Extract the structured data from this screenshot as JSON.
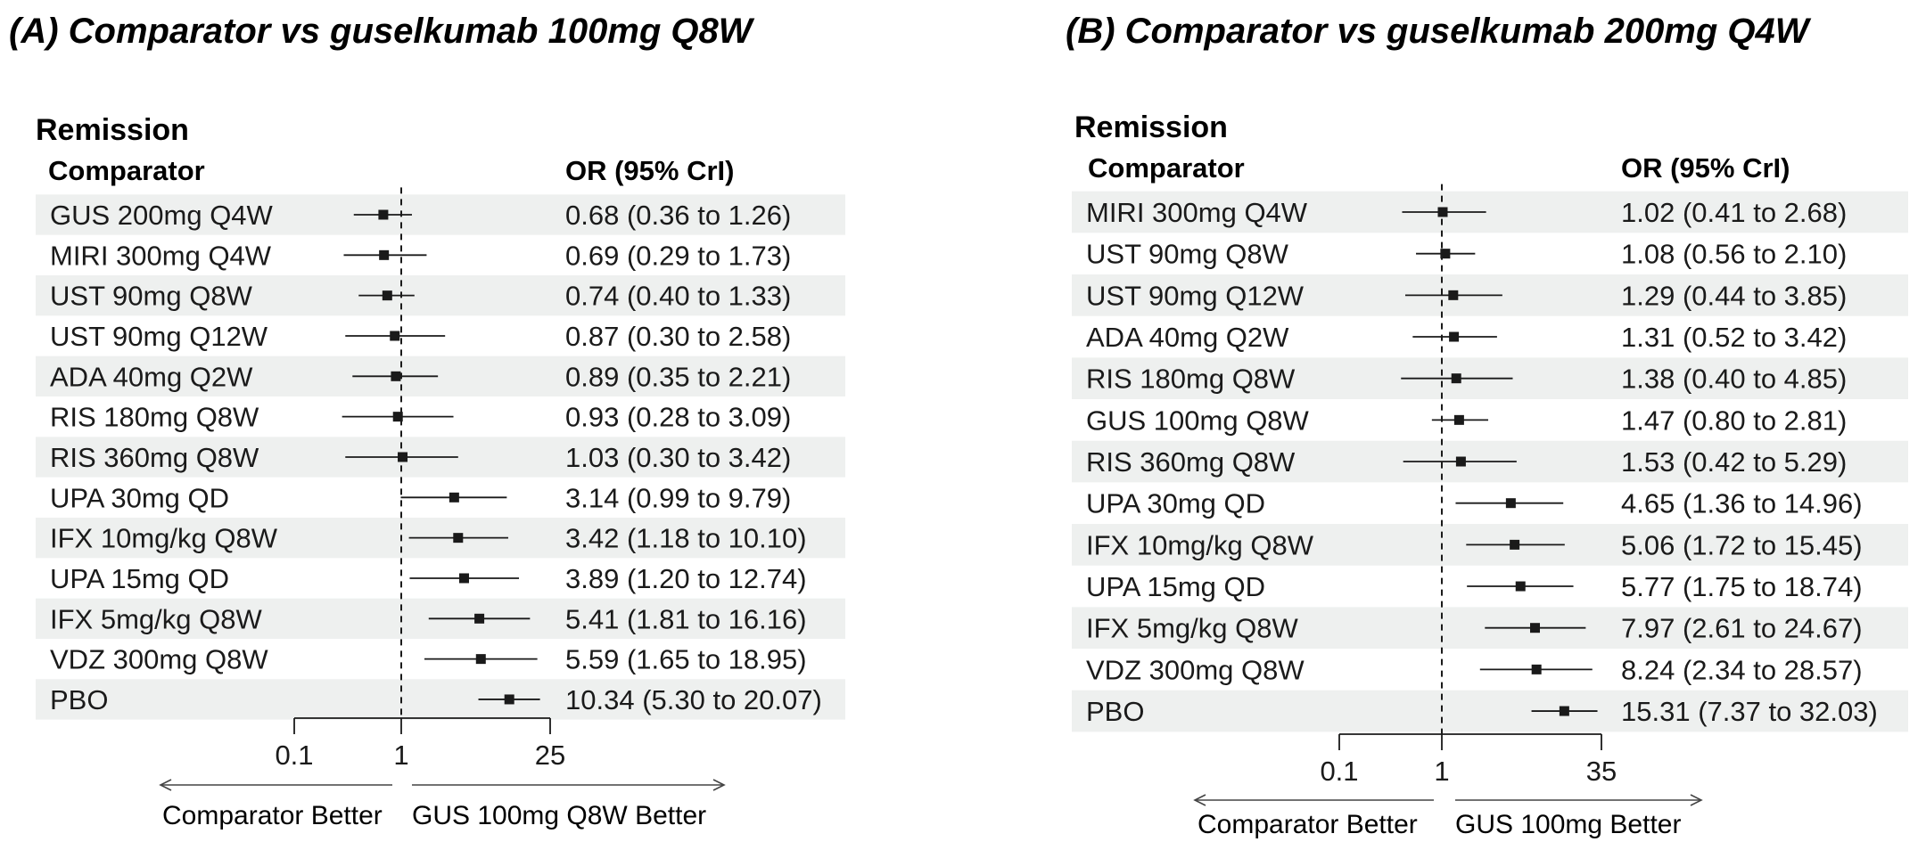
{
  "chart_data": [
    {
      "type": "forest",
      "title": "(A) Comparator vs guselkumab 100mg Q8W",
      "section": "Remission",
      "column_label": "Comparator",
      "estimate_label": "OR (95% CrI)",
      "x_scale": "log",
      "xlim": [
        0.1,
        25
      ],
      "xticks": [
        0.1,
        1,
        25
      ],
      "xtick_labels": [
        "0.1",
        "1",
        "25"
      ],
      "reference_line": 1,
      "direction_left": "Comparator Better",
      "direction_right": "GUS 100mg Q8W Better",
      "rows": [
        {
          "label": "GUS 200mg Q4W",
          "or": 0.68,
          "lo": 0.36,
          "hi": 1.26,
          "text": "0.68 (0.36 to 1.26)"
        },
        {
          "label": "MIRI 300mg Q4W",
          "or": 0.69,
          "lo": 0.29,
          "hi": 1.73,
          "text": "0.69 (0.29 to 1.73)"
        },
        {
          "label": "UST 90mg Q8W",
          "or": 0.74,
          "lo": 0.4,
          "hi": 1.33,
          "text": "0.74 (0.40 to 1.33)"
        },
        {
          "label": "UST 90mg Q12W",
          "or": 0.87,
          "lo": 0.3,
          "hi": 2.58,
          "text": "0.87 (0.30 to 2.58)"
        },
        {
          "label": "ADA 40mg Q2W",
          "or": 0.89,
          "lo": 0.35,
          "hi": 2.21,
          "text": "0.89 (0.35 to 2.21)"
        },
        {
          "label": "RIS 180mg Q8W",
          "or": 0.93,
          "lo": 0.28,
          "hi": 3.09,
          "text": "0.93 (0.28 to 3.09)"
        },
        {
          "label": "RIS 360mg Q8W",
          "or": 1.03,
          "lo": 0.3,
          "hi": 3.42,
          "text": "1.03 (0.30 to 3.42)"
        },
        {
          "label": "UPA 30mg QD",
          "or": 3.14,
          "lo": 0.99,
          "hi": 9.79,
          "text": "3.14 (0.99 to 9.79)"
        },
        {
          "label": "IFX 10mg/kg Q8W",
          "or": 3.42,
          "lo": 1.18,
          "hi": 10.1,
          "text": "3.42 (1.18 to 10.10)"
        },
        {
          "label": "UPA 15mg QD",
          "or": 3.89,
          "lo": 1.2,
          "hi": 12.74,
          "text": "3.89 (1.20 to 12.74)"
        },
        {
          "label": "IFX 5mg/kg Q8W",
          "or": 5.41,
          "lo": 1.81,
          "hi": 16.16,
          "text": "5.41 (1.81 to 16.16)"
        },
        {
          "label": "VDZ 300mg Q8W",
          "or": 5.59,
          "lo": 1.65,
          "hi": 18.95,
          "text": "5.59 (1.65 to 18.95)"
        },
        {
          "label": "PBO",
          "or": 10.34,
          "lo": 5.3,
          "hi": 20.07,
          "text": "10.34 (5.30 to 20.07)"
        }
      ]
    },
    {
      "type": "forest",
      "title": "(B) Comparator vs guselkumab 200mg Q4W",
      "section": "Remission",
      "column_label": "Comparator",
      "estimate_label": "OR (95% CrI)",
      "x_scale": "log",
      "xlim": [
        0.1,
        35
      ],
      "xticks": [
        0.1,
        1,
        35
      ],
      "xtick_labels": [
        "0.1",
        "1",
        "35"
      ],
      "reference_line": 1,
      "direction_left": "Comparator Better",
      "direction_right": "GUS 100mg Better",
      "rows": [
        {
          "label": "MIRI 300mg Q4W",
          "or": 1.02,
          "lo": 0.41,
          "hi": 2.68,
          "text": "1.02 (0.41 to 2.68)"
        },
        {
          "label": "UST 90mg Q8W",
          "or": 1.08,
          "lo": 0.56,
          "hi": 2.1,
          "text": "1.08 (0.56 to 2.10)"
        },
        {
          "label": "UST 90mg Q12W",
          "or": 1.29,
          "lo": 0.44,
          "hi": 3.85,
          "text": "1.29 (0.44 to 3.85)"
        },
        {
          "label": "ADA 40mg Q2W",
          "or": 1.31,
          "lo": 0.52,
          "hi": 3.42,
          "text": "1.31 (0.52 to 3.42)"
        },
        {
          "label": "RIS 180mg Q8W",
          "or": 1.38,
          "lo": 0.4,
          "hi": 4.85,
          "text": "1.38 (0.40 to 4.85)"
        },
        {
          "label": "GUS 100mg Q8W",
          "or": 1.47,
          "lo": 0.8,
          "hi": 2.81,
          "text": "1.47 (0.80 to 2.81)"
        },
        {
          "label": "RIS 360mg Q8W",
          "or": 1.53,
          "lo": 0.42,
          "hi": 5.29,
          "text": "1.53 (0.42 to 5.29)"
        },
        {
          "label": "UPA 30mg QD",
          "or": 4.65,
          "lo": 1.36,
          "hi": 14.96,
          "text": "4.65 (1.36 to 14.96)"
        },
        {
          "label": "IFX 10mg/kg Q8W",
          "or": 5.06,
          "lo": 1.72,
          "hi": 15.45,
          "text": "5.06 (1.72 to 15.45)"
        },
        {
          "label": "UPA 15mg QD",
          "or": 5.77,
          "lo": 1.75,
          "hi": 18.74,
          "text": "5.77 (1.75 to 18.74)"
        },
        {
          "label": "IFX 5mg/kg Q8W",
          "or": 7.97,
          "lo": 2.61,
          "hi": 24.67,
          "text": "7.97 (2.61 to 24.67)"
        },
        {
          "label": "VDZ 300mg Q8W",
          "or": 8.24,
          "lo": 2.34,
          "hi": 28.57,
          "text": "8.24 (2.34 to 28.57)"
        },
        {
          "label": "PBO",
          "or": 15.31,
          "lo": 7.37,
          "hi": 32.03,
          "text": "15.31 (7.37 to 32.03)"
        }
      ]
    }
  ],
  "colors": {
    "stripe": "#eef0ef",
    "ink": "#1a1a1a",
    "axis": "#444444"
  }
}
